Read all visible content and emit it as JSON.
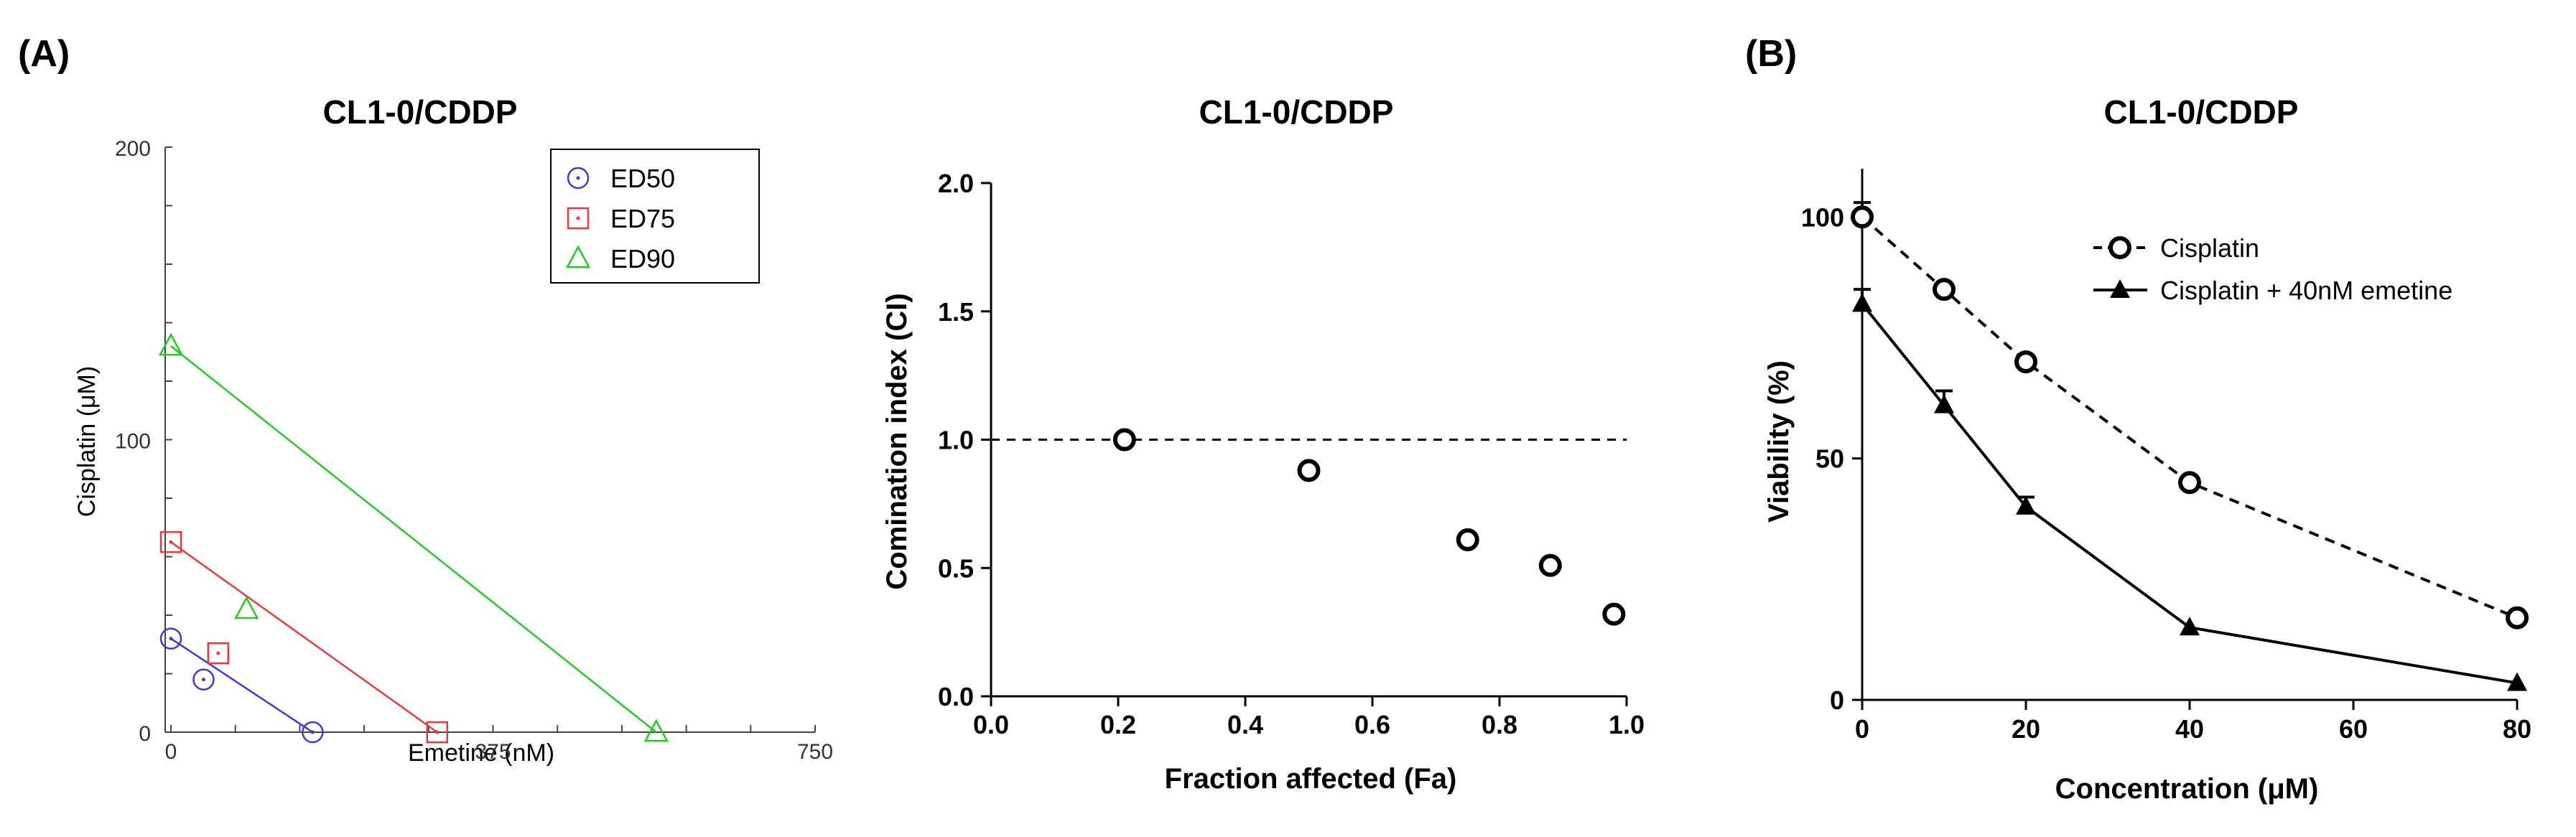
{
  "panel_labels": {
    "a": "(A)",
    "b": "(B)"
  },
  "chart_data": [
    {
      "id": "isobologram",
      "type": "scatter",
      "title": "CL1-0/CDDP",
      "xlabel": "Emetine (nM)",
      "ylabel": "Cisplatin (μM)",
      "xlim": [
        0,
        750
      ],
      "ylim": [
        0,
        200
      ],
      "xticks": [
        "0",
        "375",
        "750"
      ],
      "yticks": [
        "0",
        "100",
        "200"
      ],
      "legend_position": "top-right",
      "series": [
        {
          "name": "ED50",
          "color": "#3b3bd6",
          "marker": "circle-dot",
          "line": [
            [
              0,
              32
            ],
            [
              165,
              0
            ]
          ],
          "points": [
            [
              0,
              32
            ],
            [
              38,
              18
            ],
            [
              165,
              0
            ]
          ]
        },
        {
          "name": "ED75",
          "color": "#e83a3a",
          "marker": "square-dot",
          "line": [
            [
              0,
              65
            ],
            [
              310,
              0
            ]
          ],
          "points": [
            [
              0,
              65
            ],
            [
              55,
              27
            ],
            [
              310,
              0
            ]
          ]
        },
        {
          "name": "ED90",
          "color": "#22cc22",
          "marker": "triangle",
          "line": [
            [
              0,
              132
            ],
            [
              565,
              0
            ]
          ],
          "points": [
            [
              0,
              132
            ],
            [
              88,
              42
            ],
            [
              565,
              0
            ]
          ]
        }
      ]
    },
    {
      "id": "combination-index",
      "type": "scatter",
      "title": "CL1-0/CDDP",
      "xlabel": "Fraction affected (Fa)",
      "ylabel": "Comination index (CI)",
      "xlim": [
        0,
        1.0
      ],
      "ylim": [
        0,
        2.0
      ],
      "xticks": [
        "0.0",
        "0.2",
        "0.4",
        "0.6",
        "0.8",
        "1.0"
      ],
      "yticks": [
        "0.0",
        "0.5",
        "1.0",
        "1.5",
        "2.0"
      ],
      "reference_line": 1.0,
      "points": [
        [
          0.21,
          1.0
        ],
        [
          0.5,
          0.88
        ],
        [
          0.75,
          0.61
        ],
        [
          0.88,
          0.51
        ],
        [
          0.98,
          0.32
        ]
      ]
    },
    {
      "id": "viability",
      "type": "line",
      "title": "CL1-0/CDDP",
      "xlabel": "Concentration (μM)",
      "ylabel": "Viability (%)",
      "xlim": [
        0,
        80
      ],
      "ylim": [
        0,
        110
      ],
      "xticks": [
        "0",
        "20",
        "40",
        "60",
        "80"
      ],
      "yticks": [
        "0",
        "50",
        "100"
      ],
      "legend_position": "top-right",
      "series": [
        {
          "name": "Cisplatin",
          "style": "dashed",
          "marker": "open-circle",
          "x": [
            0,
            10,
            20,
            40,
            80
          ],
          "y": [
            100,
            85,
            70,
            45,
            17
          ],
          "err": [
            3,
            0,
            0,
            0,
            0
          ]
        },
        {
          "name": "Cisplatin + 40nM emetine",
          "style": "solid",
          "marker": "filled-triangle",
          "x": [
            0,
            10,
            20,
            40,
            80
          ],
          "y": [
            82,
            61,
            40,
            15,
            3.5
          ],
          "err": [
            3,
            3,
            2,
            0,
            0
          ]
        }
      ]
    }
  ]
}
